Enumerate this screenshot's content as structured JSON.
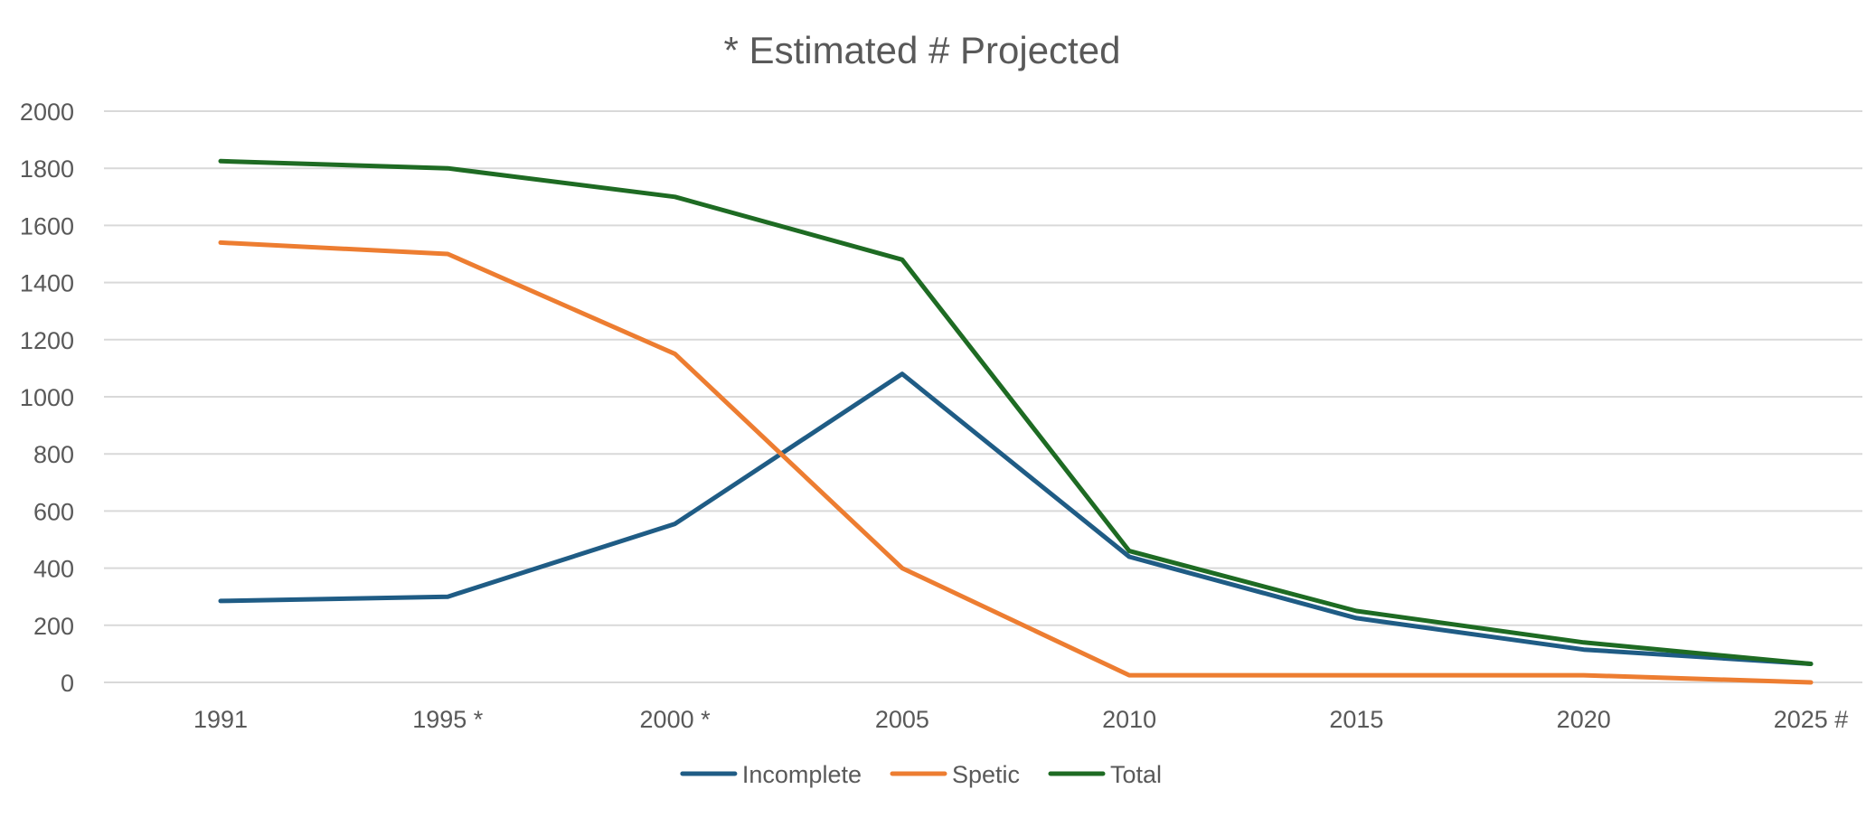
{
  "chart_data": {
    "type": "line",
    "title": "* Estimated # Projected",
    "xlabel": "",
    "ylabel": "",
    "categories": [
      "1991",
      "1995 *",
      "2000 *",
      "2005",
      "2010",
      "2015",
      "2020",
      "2025 #"
    ],
    "ylim": [
      0,
      2000
    ],
    "yticks": [
      0,
      200,
      400,
      600,
      800,
      1000,
      1200,
      1400,
      1600,
      1800,
      2000
    ],
    "grid": true,
    "legend": "bottom",
    "series": [
      {
        "name": "Incomplete",
        "color": "#1f5c85",
        "values": [
          285,
          300,
          555,
          1080,
          440,
          225,
          115,
          65
        ]
      },
      {
        "name": "Spetic",
        "color": "#ed7d31",
        "values": [
          1540,
          1500,
          1150,
          400,
          25,
          25,
          25,
          0
        ]
      },
      {
        "name": "Total",
        "color": "#1e6b23",
        "values": [
          1825,
          1800,
          1700,
          1480,
          460,
          250,
          140,
          65
        ]
      }
    ]
  }
}
